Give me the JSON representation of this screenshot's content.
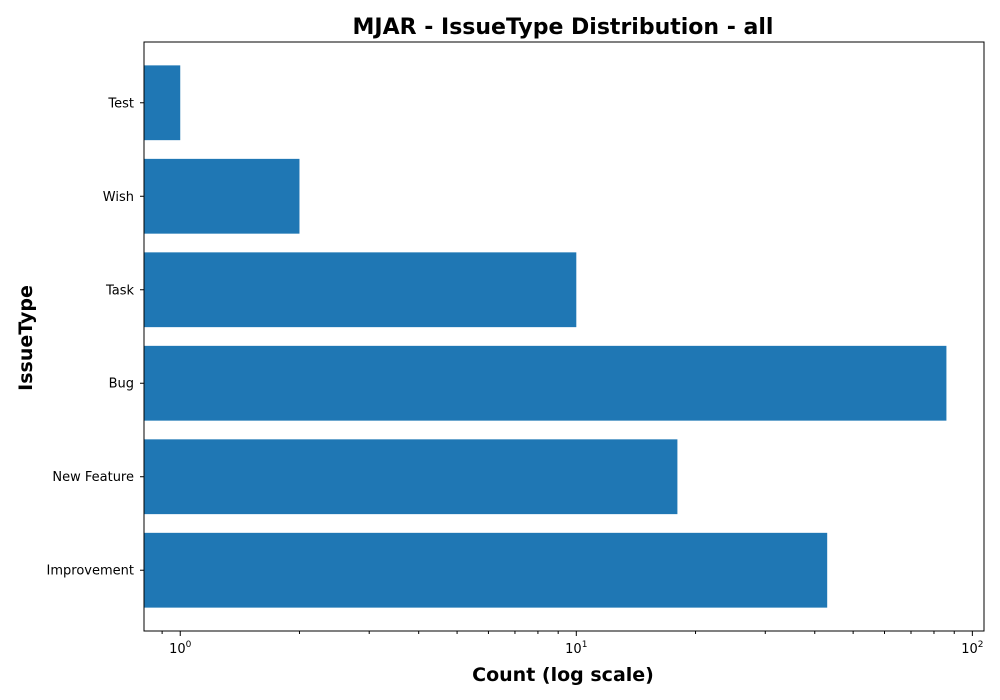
{
  "chart_data": {
    "type": "bar",
    "orientation": "horizontal",
    "title": "MJAR - IssueType Distribution - all",
    "xlabel": "Count (log scale)",
    "ylabel": "IssueType",
    "x_scale": "log",
    "xlim": [
      0.81,
      107
    ],
    "x_ticks": [
      {
        "value": 1,
        "base": "10",
        "exp": "0"
      },
      {
        "value": 10,
        "base": "10",
        "exp": "1"
      },
      {
        "value": 100,
        "base": "10",
        "exp": "2"
      }
    ],
    "categories": [
      "Improvement",
      "New Feature",
      "Bug",
      "Task",
      "Wish",
      "Test"
    ],
    "values": [
      43,
      18,
      86,
      10,
      2,
      1
    ],
    "bar_color": "#1f77b4",
    "grid": false
  }
}
